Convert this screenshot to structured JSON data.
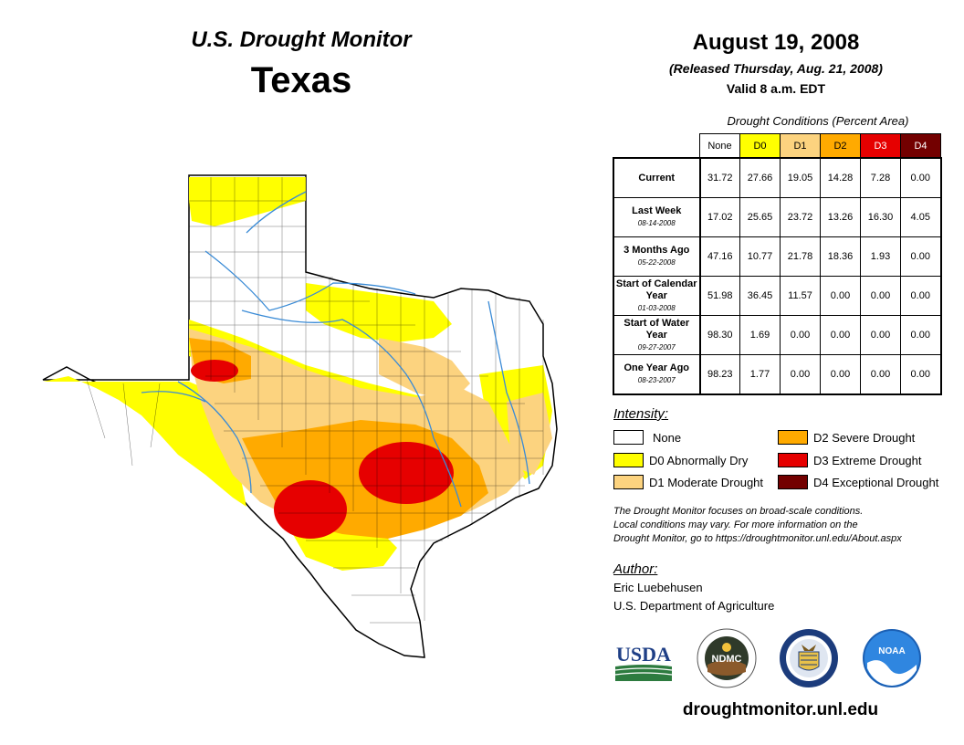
{
  "header": {
    "monitor_title": "U.S. Drought Monitor",
    "region": "Texas",
    "date": "August 19, 2008",
    "released": "(Released Thursday, Aug. 21, 2008)",
    "valid": "Valid 8 a.m. EDT"
  },
  "table": {
    "caption": "Drought Conditions (Percent Area)",
    "columns": [
      {
        "label": "None",
        "color": "#ffffff"
      },
      {
        "label": "D0",
        "color": "#ffff00"
      },
      {
        "label": "D1",
        "color": "#fcd37f"
      },
      {
        "label": "D2",
        "color": "#ffaa00"
      },
      {
        "label": "D3",
        "color": "#e60000"
      },
      {
        "label": "D4",
        "color": "#730000"
      }
    ],
    "rows": [
      {
        "label": "Current",
        "sublabel": "",
        "values": [
          "31.72",
          "27.66",
          "19.05",
          "14.28",
          "7.28",
          "0.00"
        ]
      },
      {
        "label": "Last Week",
        "sublabel": "08-14-2008",
        "values": [
          "17.02",
          "25.65",
          "23.72",
          "13.26",
          "16.30",
          "4.05"
        ]
      },
      {
        "label": "3 Months Ago",
        "sublabel": "05-22-2008",
        "values": [
          "47.16",
          "10.77",
          "21.78",
          "18.36",
          "1.93",
          "0.00"
        ]
      },
      {
        "label": "Start of Calendar Year",
        "sublabel": "01-03-2008",
        "values": [
          "51.98",
          "36.45",
          "11.57",
          "0.00",
          "0.00",
          "0.00"
        ]
      },
      {
        "label": "Start of Water Year",
        "sublabel": "09-27-2007",
        "values": [
          "98.30",
          "1.69",
          "0.00",
          "0.00",
          "0.00",
          "0.00"
        ]
      },
      {
        "label": "One Year Ago",
        "sublabel": "08-23-2007",
        "values": [
          "98.23",
          "1.77",
          "0.00",
          "0.00",
          "0.00",
          "0.00"
        ]
      }
    ]
  },
  "legend": {
    "title": "Intensity:",
    "items": [
      {
        "label": "None",
        "color": "#ffffff"
      },
      {
        "label": "D0 Abnormally Dry",
        "color": "#ffff00"
      },
      {
        "label": "D1 Moderate Drought",
        "color": "#fcd37f"
      },
      {
        "label": "D2 Severe Drought",
        "color": "#ffaa00"
      },
      {
        "label": "D3 Extreme Drought",
        "color": "#e60000"
      },
      {
        "label": "D4 Exceptional Drought",
        "color": "#730000"
      }
    ]
  },
  "note": {
    "line1": "The Drought Monitor focuses on broad-scale conditions.",
    "line2": "Local conditions may vary. For more information on the",
    "line3": "Drought Monitor, go to https://droughtmonitor.unl.edu/About.aspx"
  },
  "author": {
    "title": "Author:",
    "name": "Eric Luebehusen",
    "org": "U.S. Department of Agriculture"
  },
  "logos": {
    "usda": "USDA",
    "ndmc": "NDMC",
    "noaa": "NOAA"
  },
  "footer": {
    "url": "droughtmonitor.unl.edu"
  }
}
